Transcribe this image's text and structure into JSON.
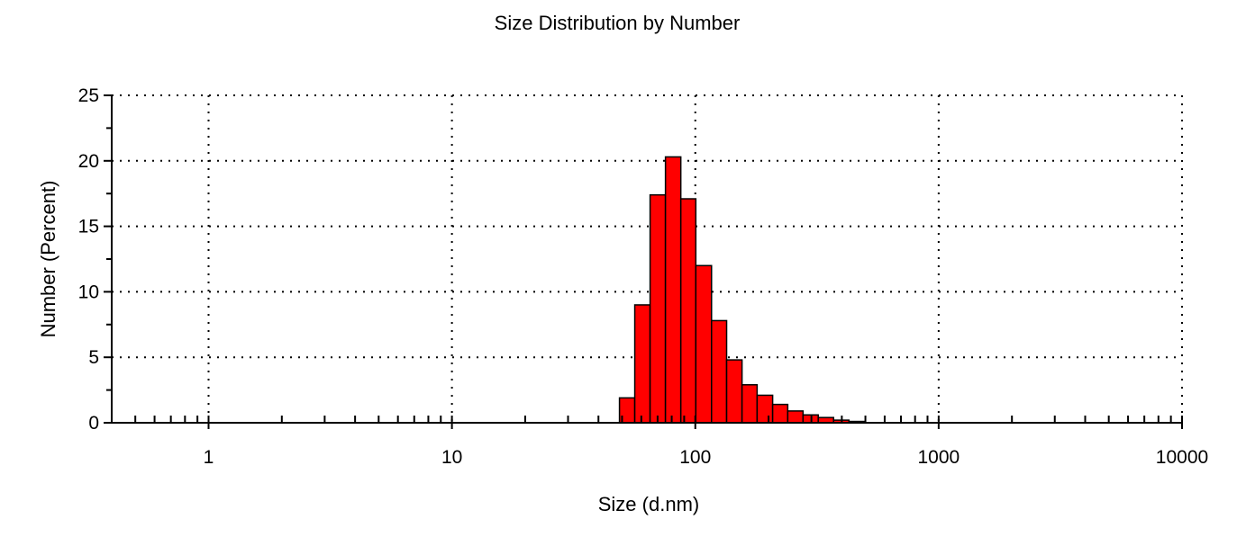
{
  "chart_data": {
    "type": "bar",
    "title": "Size Distribution by Number",
    "xlabel": "Size (d.nm)",
    "ylabel": "Number (Percent)",
    "xscale": "log",
    "xlim": [
      0.4,
      10000
    ],
    "ylim": [
      0,
      25
    ],
    "grid": true,
    "x_ticks": [
      1,
      10,
      100,
      1000,
      10000
    ],
    "x_tick_labels": [
      "1",
      "10",
      "100",
      "1000",
      "10000"
    ],
    "y_ticks": [
      0,
      5,
      10,
      15,
      20,
      25
    ],
    "y_tick_labels": [
      "0",
      "5",
      "10",
      "15",
      "20",
      "25"
    ],
    "bar_color": "#ff0000",
    "bins": [
      {
        "lo": 48.8,
        "hi": 56.4,
        "value": 1.9
      },
      {
        "lo": 56.4,
        "hi": 65.2,
        "value": 9.0
      },
      {
        "lo": 65.2,
        "hi": 75.4,
        "value": 17.4
      },
      {
        "lo": 75.4,
        "hi": 87.2,
        "value": 20.3
      },
      {
        "lo": 87.2,
        "hi": 100.5,
        "value": 17.1
      },
      {
        "lo": 100.5,
        "hi": 116.6,
        "value": 12.0
      },
      {
        "lo": 116.6,
        "hi": 134.5,
        "value": 7.8
      },
      {
        "lo": 134.5,
        "hi": 155.6,
        "value": 4.8
      },
      {
        "lo": 155.6,
        "hi": 179.5,
        "value": 2.9
      },
      {
        "lo": 179.5,
        "hi": 207.9,
        "value": 2.1
      },
      {
        "lo": 207.9,
        "hi": 239.8,
        "value": 1.4
      },
      {
        "lo": 239.8,
        "hi": 277.2,
        "value": 0.9
      },
      {
        "lo": 277.2,
        "hi": 320.0,
        "value": 0.6
      },
      {
        "lo": 320.0,
        "hi": 370.0,
        "value": 0.4
      },
      {
        "lo": 370.0,
        "hi": 428.0,
        "value": 0.2
      },
      {
        "lo": 428.0,
        "hi": 495.0,
        "value": 0.1
      }
    ]
  }
}
